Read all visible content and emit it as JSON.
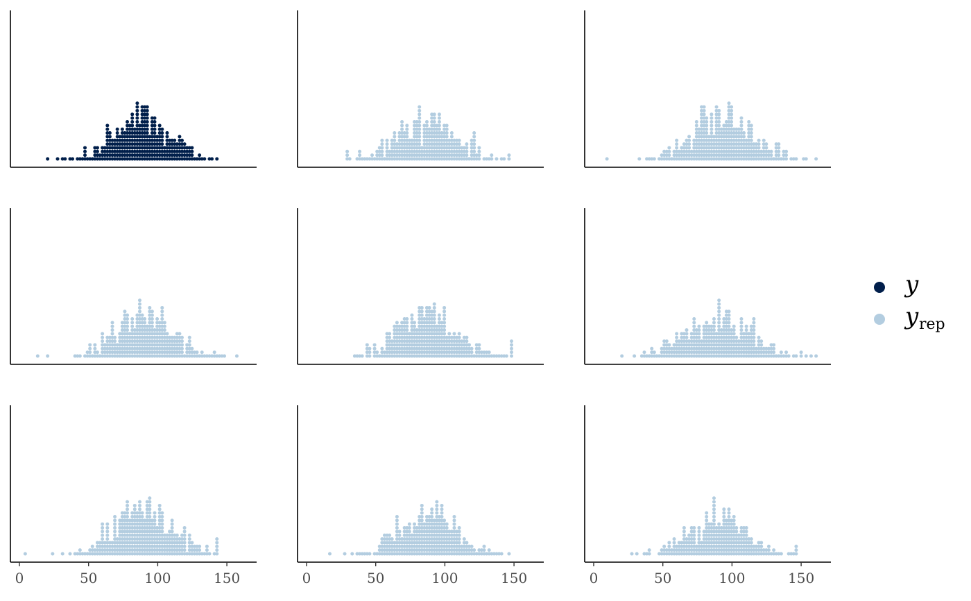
{
  "chart_data": {
    "type": "dotplot",
    "layout": "3x3 grid of dot-histogram panels",
    "grid": false,
    "legend": {
      "placement": "right",
      "entries": [
        {
          "key": "y",
          "label": "y",
          "subscript": "",
          "color": "#011f4b",
          "stroke": "#011f4b"
        },
        {
          "key": "yrep",
          "label": "y",
          "subscript": "rep",
          "color": "#b3cde0",
          "stroke": "#b3cde0"
        }
      ]
    },
    "x_axis": {
      "xlim": [
        -3,
        168
      ],
      "ticks": [
        "0",
        "50",
        "100",
        "150"
      ],
      "tick_values": [
        0,
        50,
        100,
        150
      ],
      "shown_on_bottom_row_only": true
    },
    "panels": [
      {
        "series": "y",
        "color": "#011f4b",
        "center": 88,
        "sd": 20,
        "n": 470,
        "min": 20,
        "max": 143,
        "peak_count": 16
      },
      {
        "series": "yrep",
        "color": "#b3cde0",
        "center": 87,
        "sd": 22,
        "n": 520,
        "min": 29,
        "max": 147,
        "peak_count": 15
      },
      {
        "series": "yrep",
        "color": "#b3cde0",
        "center": 93,
        "sd": 23,
        "n": 560,
        "min": 10,
        "max": 160,
        "peak_count": 16
      },
      {
        "series": "yrep",
        "color": "#b3cde0",
        "center": 90,
        "sd": 21,
        "n": 560,
        "min": 13,
        "max": 157,
        "peak_count": 16
      },
      {
        "series": "yrep",
        "color": "#b3cde0",
        "center": 88,
        "sd": 23,
        "n": 520,
        "min": 35,
        "max": 148,
        "peak_count": 15
      },
      {
        "series": "yrep",
        "color": "#b3cde0",
        "center": 90,
        "sd": 24,
        "n": 540,
        "min": 21,
        "max": 160,
        "peak_count": 16
      },
      {
        "series": "yrep",
        "color": "#b3cde0",
        "center": 90,
        "sd": 21,
        "n": 600,
        "min": 4,
        "max": 143,
        "peak_count": 16
      },
      {
        "series": "yrep",
        "color": "#b3cde0",
        "center": 88,
        "sd": 20,
        "n": 520,
        "min": 17,
        "max": 147,
        "peak_count": 15
      },
      {
        "series": "yrep",
        "color": "#b3cde0",
        "center": 90,
        "sd": 21,
        "n": 540,
        "min": 28,
        "max": 146,
        "peak_count": 16
      }
    ]
  }
}
